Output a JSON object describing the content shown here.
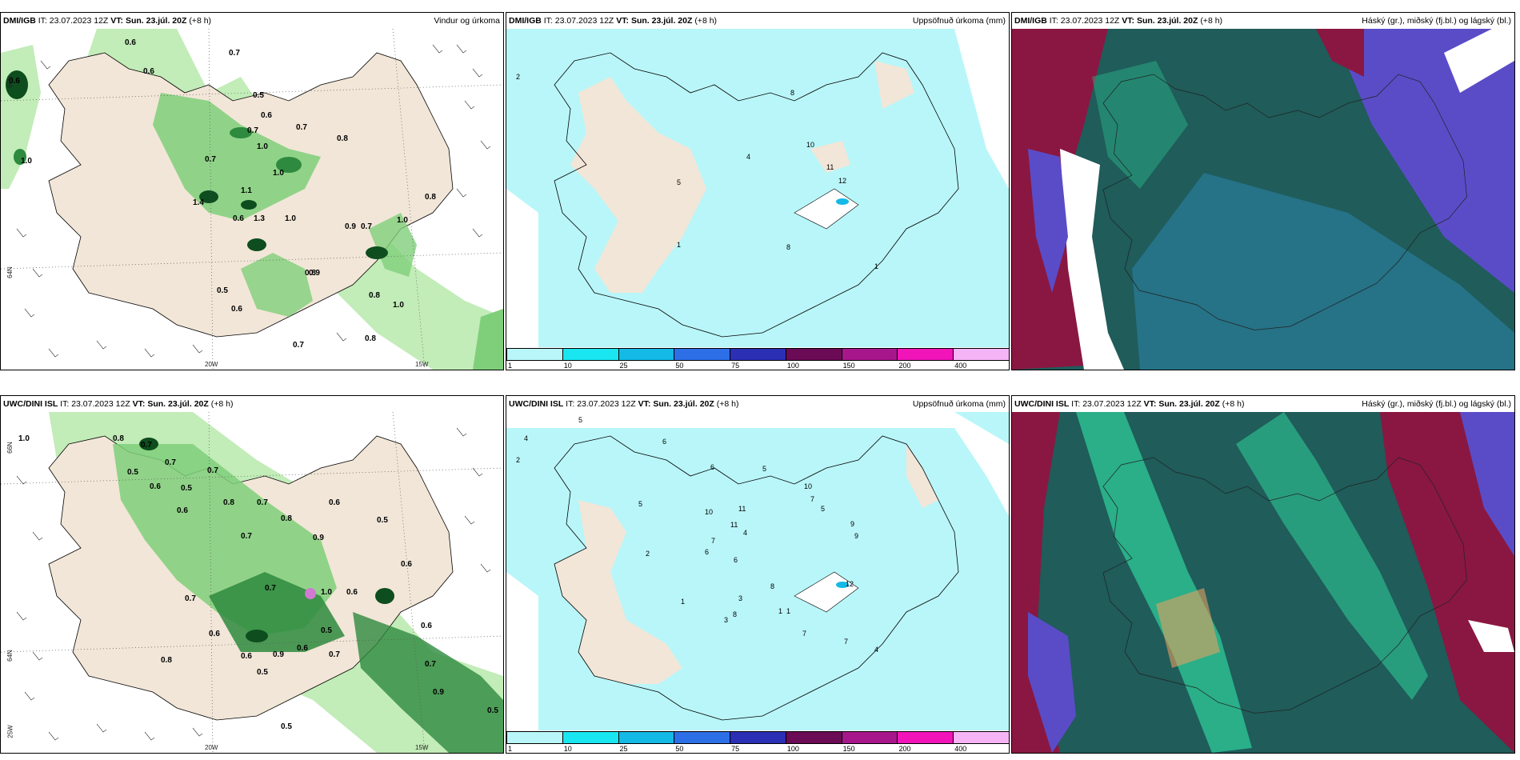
{
  "panels": [
    {
      "model": "DMI/IGB",
      "it_label": "IT:",
      "it": "23.07.2023 12Z",
      "vt_label": "VT:",
      "vt": "Sun. 23.júl. 20Z",
      "lead": "(+8 h)",
      "title": "Vindur og úrkoma"
    },
    {
      "model": "DMI/IGB",
      "it_label": "IT:",
      "it": "23.07.2023 12Z",
      "vt_label": "VT:",
      "vt": "Sun. 23.júl. 20Z",
      "lead": "(+8 h)",
      "title": "Uppsöfnuð úrkoma (mm)"
    },
    {
      "model": "DMI/IGB",
      "it_label": "IT:",
      "it": "23.07.2023 12Z",
      "vt_label": "VT:",
      "vt": "Sun. 23.júl. 20Z",
      "lead": "(+8 h)",
      "title": "Háský (gr.), miðský (fj.bl.) og lágský (bl.)"
    },
    {
      "model": "UWC/DINI ISL",
      "it_label": "IT:",
      "it": "23.07.2023 12Z",
      "vt_label": "VT:",
      "vt": "Sun. 23.júl. 20Z",
      "lead": "(+8 h)",
      "title": ""
    },
    {
      "model": "UWC/DINI ISL",
      "it_label": "IT:",
      "it": "23.07.2023 12Z",
      "vt_label": "VT:",
      "vt": "Sun. 23.júl. 20Z",
      "lead": "(+8 h)",
      "title": "Uppsöfnuð úrkoma (mm)"
    },
    {
      "model": "UWC/DINI ISL",
      "it_label": "IT:",
      "it": "23.07.2023 12Z",
      "vt_label": "VT:",
      "vt": "Sun. 23.júl. 20Z",
      "lead": "(+8 h)",
      "title": "Háský (gr.), miðský (fj.bl.) og lágský (bl.)"
    }
  ],
  "axis_labels": {
    "lat_66": "66N",
    "lat_64": "64N",
    "lon_20": "20W",
    "lon_15": "15W",
    "lon_25": "25W"
  },
  "legend": {
    "ticks": [
      "1",
      "10",
      "25",
      "50",
      "75",
      "100",
      "150",
      "200",
      "400"
    ],
    "colors": [
      "#b9f6f9",
      "#19e6f0",
      "#14b9e6",
      "#2d6fe6",
      "#2b2fb4",
      "#6b0a55",
      "#a8168c",
      "#f014b9",
      "#f5b4f5"
    ]
  },
  "wind_precip_dmi_values": [
    "0.6",
    "0.7",
    "0.6",
    "0.5",
    "0.6",
    "0.7",
    "0.7",
    "1.0",
    "0.8",
    "0.7",
    "1.0",
    "1.1",
    "1.4",
    "0.6",
    "1.3",
    "1.0",
    "0.9",
    "0.7",
    "1.0",
    "0.8",
    "0.9",
    "0.8",
    "0.5",
    "0.6",
    "0.8",
    "1.0",
    "0.8",
    "0.7",
    "1.0",
    "0.6"
  ],
  "wind_precip_uwc_values": [
    "1.0",
    "0.8",
    "0.7",
    "0.7",
    "0.5",
    "0.6",
    "0.5",
    "0.7",
    "0.6",
    "0.8",
    "0.7",
    "0.6",
    "0.7",
    "0.9",
    "0.5",
    "0.8",
    "0.7",
    "1.0",
    "0.6",
    "0.5",
    "0.7",
    "0.6",
    "0.9",
    "0.6",
    "0.5",
    "0.6",
    "0.7",
    "0.8",
    "0.5",
    "0.6",
    "0.7",
    "0.9",
    "0.5",
    "0.7",
    "0.6"
  ],
  "accum_dmi_values": [
    "2",
    "8",
    "4",
    "10",
    "11",
    "12",
    "5",
    "1",
    "8",
    "1"
  ],
  "accum_uwc_values": [
    "4",
    "5",
    "2",
    "6",
    "6",
    "5",
    "5",
    "10",
    "11",
    "11",
    "10",
    "7",
    "5",
    "4",
    "6",
    "7",
    "6",
    "9",
    "9",
    "8",
    "12",
    "1",
    "1",
    "3",
    "2",
    "1",
    "8",
    "3",
    "7",
    "7",
    "4"
  ],
  "colors": {
    "land": "#f2e6d8",
    "sea": "#ffffff",
    "accum_light": "#b9f6f9",
    "green1": "#c2ecb8",
    "green2": "#7fcf7a",
    "green3": "#2e8a3e",
    "green4": "#0d4d1e",
    "cloud_teal": "#1f5c5a",
    "cloud_blue": "#5a4cc7",
    "cloud_maroon": "#8a1741",
    "cloud_mint": "#2fd39b"
  }
}
